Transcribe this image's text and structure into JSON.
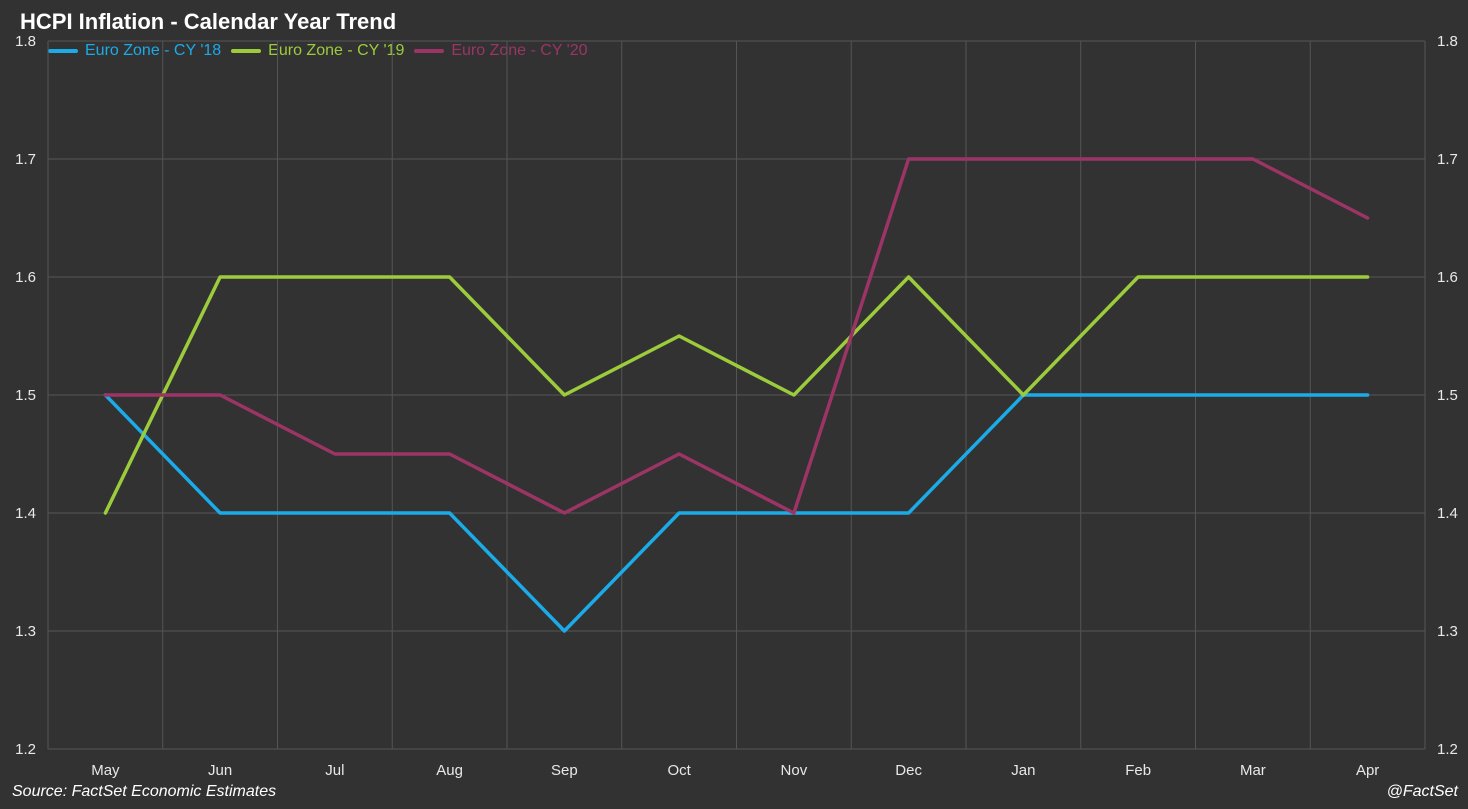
{
  "chart_data": {
    "type": "line",
    "title": "HCPI Inflation - Calendar Year Trend",
    "categories": [
      "May",
      "Jun",
      "Jul",
      "Aug",
      "Sep",
      "Oct",
      "Nov",
      "Dec",
      "Jan",
      "Feb",
      "Mar",
      "Apr"
    ],
    "series": [
      {
        "name": "Euro Zone - CY '18",
        "color": "#1aabe8",
        "values": [
          1.5,
          1.4,
          1.4,
          1.4,
          1.3,
          1.4,
          1.4,
          1.4,
          1.5,
          1.5,
          1.5,
          1.5
        ]
      },
      {
        "name": "Euro Zone - CY '19",
        "color": "#9ccc3c",
        "values": [
          1.4,
          1.6,
          1.6,
          1.6,
          1.5,
          1.55,
          1.5,
          1.6,
          1.5,
          1.6,
          1.6,
          1.6
        ]
      },
      {
        "name": "Euro Zone - CY '20",
        "color": "#9c3466",
        "values": [
          1.5,
          1.5,
          1.45,
          1.45,
          1.4,
          1.45,
          1.4,
          1.7,
          1.7,
          1.7,
          1.7,
          1.65
        ]
      }
    ],
    "ylim": [
      1.2,
      1.8
    ],
    "yticks": [
      "1.2",
      "1.3",
      "1.4",
      "1.5",
      "1.6",
      "1.7",
      "1.8"
    ],
    "xlabel": "",
    "ylabel": "",
    "grid": true,
    "legend": "top-left",
    "dual_y_axis": true,
    "colors": {
      "background": "#323232",
      "grid": "#555555",
      "text": "#e8e8e8"
    }
  },
  "footer": {
    "source": "Source: FactSet Economic Estimates",
    "handle": "@FactSet"
  }
}
